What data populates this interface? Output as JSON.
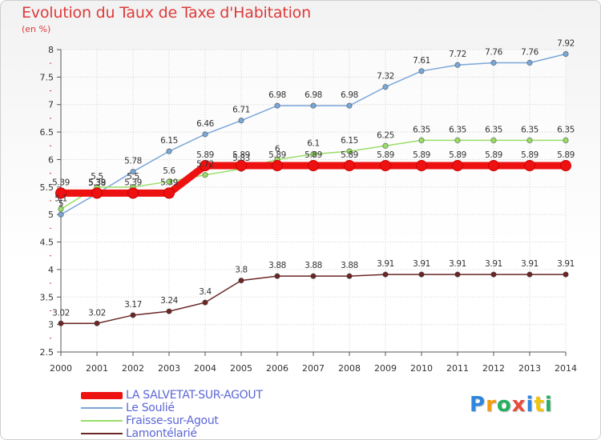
{
  "title": "Evolution du Taux de Taxe d'Habitation",
  "unit": "(en %)",
  "logo": {
    "letters": [
      {
        "ch": "P",
        "color": "#2e86de"
      },
      {
        "ch": "r",
        "color": "#f39c12"
      },
      {
        "ch": "o",
        "color": "#27ae60"
      },
      {
        "ch": "x",
        "color": "#e74c3c"
      },
      {
        "ch": "i",
        "color": "#2e86de"
      },
      {
        "ch": "t",
        "color": "#f1c40f"
      },
      {
        "ch": "i",
        "color": "#27ae60"
      }
    ]
  },
  "chart_data": {
    "type": "line",
    "title": "Evolution du Taux de Taxe d'Habitation",
    "ylabel": "(en %)",
    "xlabel": "",
    "x": [
      "2000",
      "2001",
      "2002",
      "2003",
      "2004",
      "2005",
      "2006",
      "2007",
      "2008",
      "2009",
      "2010",
      "2011",
      "2012",
      "2013",
      "2014"
    ],
    "ylim": [
      2.5,
      8
    ],
    "yticks": [
      "2.5",
      "3",
      "3.5",
      "4",
      "4.5",
      "5",
      "5.5",
      "6",
      "6.5",
      "7",
      "7.5",
      "8"
    ],
    "grid": true,
    "legend_position": "bottom-left",
    "series": [
      {
        "name": "LA SALVETAT-SUR-AGOUT",
        "color": "#ee1111",
        "emphasis": true,
        "values": [
          5.39,
          5.39,
          5.39,
          5.39,
          5.89,
          5.89,
          5.89,
          5.89,
          5.89,
          5.89,
          5.89,
          5.89,
          5.89,
          5.89,
          5.89
        ],
        "labels": [
          "5.39",
          "5.39",
          "5.39",
          "5.39",
          "5.89",
          "5.89",
          "5.89",
          "5.89",
          "5.89",
          "5.89",
          "5.89",
          "5.89",
          "5.89",
          "5.89",
          "5.89"
        ]
      },
      {
        "name": "Le Soulié",
        "color": "#7aa7d8",
        "values": [
          5,
          5.38,
          5.78,
          6.15,
          6.46,
          6.71,
          6.98,
          6.98,
          6.98,
          7.32,
          7.61,
          7.72,
          7.76,
          7.76,
          7.92
        ],
        "labels": [
          "5",
          "5.38",
          "5.78",
          "6.15",
          "6.46",
          "6.71",
          "6.98",
          "6.98",
          "6.98",
          "7.32",
          "7.61",
          "7.72",
          "7.76",
          "7.76",
          "7.92"
        ]
      },
      {
        "name": "Fraisse-sur-Agout",
        "color": "#99dd66",
        "values": [
          5.1,
          5.5,
          5.5,
          5.6,
          5.72,
          5.83,
          6,
          6.1,
          6.15,
          6.25,
          6.35,
          6.35,
          6.35,
          6.35,
          6.35
        ],
        "labels": [
          "5.1",
          "5.5",
          "5.5",
          "5.6",
          "5.72",
          "5.83",
          "6",
          "6.1",
          "6.15",
          "6.25",
          "6.35",
          "6.35",
          "6.35",
          "6.35",
          "6.35"
        ]
      },
      {
        "name": "Lamontélarié",
        "color": "#6b2626",
        "values": [
          3.02,
          3.02,
          3.17,
          3.24,
          3.4,
          3.8,
          3.88,
          3.88,
          3.88,
          3.91,
          3.91,
          3.91,
          3.91,
          3.91,
          3.91
        ],
        "labels": [
          "3.02",
          "3.02",
          "3.17",
          "3.24",
          "3.4",
          "3.8",
          "3.88",
          "3.88",
          "3.88",
          "3.91",
          "3.91",
          "3.91",
          "3.91",
          "3.91",
          "3.91"
        ]
      }
    ]
  }
}
